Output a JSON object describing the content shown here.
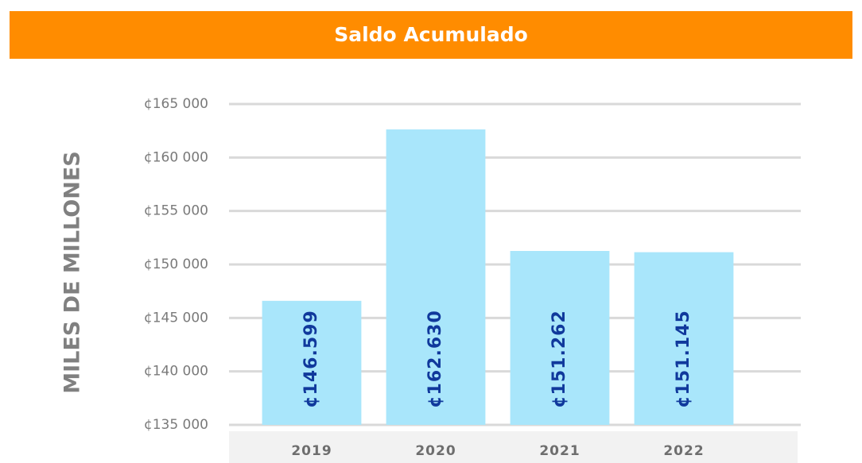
{
  "chart_data": {
    "type": "bar",
    "title": "Saldo Acumulado",
    "y_label": "MILES DE MILLONES",
    "categories": [
      "2019",
      "2020",
      "2021",
      "2022"
    ],
    "values": [
      146599,
      162630,
      151262,
      151145
    ],
    "value_labels": [
      "¢146.599",
      "¢162.630",
      "¢151.262",
      "¢151.145"
    ],
    "color": "#a9e6fb",
    "ylim": [
      135000,
      165000
    ],
    "yticks": [
      {
        "value": 135000,
        "label": "¢135 000"
      },
      {
        "value": 140000,
        "label": "¢140 000"
      },
      {
        "value": 145000,
        "label": "¢145 000"
      },
      {
        "value": 150000,
        "label": "¢150 000"
      },
      {
        "value": 155000,
        "label": "¢155 000"
      },
      {
        "value": 160000,
        "label": "¢160 000"
      },
      {
        "value": 165000,
        "label": "¢165 000"
      }
    ],
    "grid": true
  }
}
